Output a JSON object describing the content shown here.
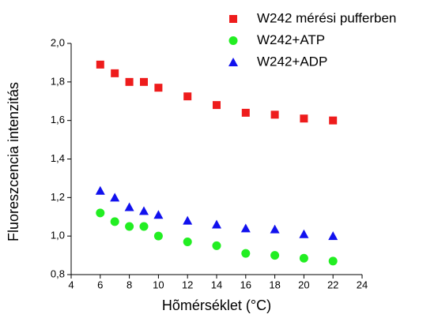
{
  "chart_data": {
    "type": "scatter",
    "x_label": "Hõmérséklet (°C)",
    "y_label": "Fluoreszcencia intenzitás",
    "xlim": [
      4,
      24
    ],
    "xticks": [
      4,
      6,
      8,
      10,
      12,
      14,
      16,
      18,
      20,
      22,
      24
    ],
    "ylim": [
      0.8,
      2.0
    ],
    "yticks": [
      {
        "value": 0.8,
        "label": "0,8"
      },
      {
        "value": 1.0,
        "label": "1,0"
      },
      {
        "value": 1.2,
        "label": "1,2"
      },
      {
        "value": 1.4,
        "label": "1,4"
      },
      {
        "value": 1.6,
        "label": "1,6"
      },
      {
        "value": 1.8,
        "label": "1,8"
      },
      {
        "value": 2.0,
        "label": "2,0"
      }
    ],
    "legend_position": "top-right",
    "series": [
      {
        "name": "W242 mérési pufferben",
        "color": "#ee1c1c",
        "marker": "square",
        "x": [
          6,
          7,
          8,
          9,
          10,
          12,
          14,
          16,
          18,
          20,
          22
        ],
        "values": [
          1.89,
          1.845,
          1.8,
          1.8,
          1.77,
          1.725,
          1.68,
          1.64,
          1.63,
          1.61,
          1.6
        ]
      },
      {
        "name": "W242+ATP",
        "color": "#22ee22",
        "marker": "circle",
        "x": [
          6,
          7,
          8,
          9,
          10,
          12,
          14,
          16,
          18,
          20,
          22
        ],
        "values": [
          1.12,
          1.075,
          1.05,
          1.05,
          1.0,
          0.97,
          0.95,
          0.91,
          0.9,
          0.885,
          0.87
        ]
      },
      {
        "name": "W242+ADP",
        "color": "#1111ee",
        "marker": "triangle",
        "x": [
          6,
          7,
          8,
          9,
          10,
          12,
          14,
          16,
          18,
          20,
          22
        ],
        "values": [
          1.235,
          1.2,
          1.15,
          1.13,
          1.11,
          1.08,
          1.06,
          1.04,
          1.035,
          1.01,
          1.0
        ]
      }
    ]
  }
}
